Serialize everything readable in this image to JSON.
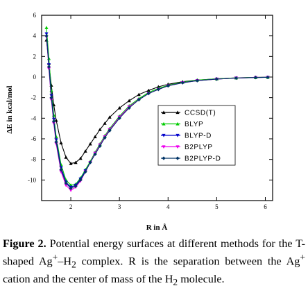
{
  "chart_data": {
    "type": "line",
    "xlabel": "R in Å",
    "ylabel": "ΔE in kcal/mol",
    "xlim": [
      1.4,
      6.15
    ],
    "ylim": [
      -12,
      6
    ],
    "x_ticks": [
      2,
      3,
      4,
      5,
      6
    ],
    "y_ticks": [
      6,
      4,
      2,
      0,
      -2,
      -4,
      -6,
      -8,
      -10
    ],
    "grid": false,
    "legend_position": "center-right",
    "series": [
      {
        "name": "CCSD(T)",
        "color": "#000000",
        "marker": "triangle",
        "x": [
          1.5,
          1.55,
          1.6,
          1.65,
          1.7,
          1.8,
          1.9,
          2.0,
          2.1,
          2.2,
          2.3,
          2.4,
          2.5,
          2.6,
          2.7,
          2.8,
          3.0,
          3.2,
          3.4,
          3.6,
          3.8,
          4.0,
          4.3,
          4.6,
          5.0,
          5.4,
          5.8,
          6.05
        ],
        "y": [
          3.6,
          1.3,
          -0.8,
          -2.7,
          -4.2,
          -6.4,
          -7.8,
          -8.4,
          -8.3,
          -7.9,
          -7.2,
          -6.5,
          -5.8,
          -5.1,
          -4.5,
          -3.9,
          -3.0,
          -2.3,
          -1.7,
          -1.3,
          -0.95,
          -0.7,
          -0.45,
          -0.3,
          -0.17,
          -0.08,
          -0.03,
          -0.02
        ]
      },
      {
        "name": "BLYP",
        "color": "#00cc00",
        "marker": "triangle",
        "x": [
          1.5,
          1.55,
          1.6,
          1.65,
          1.7,
          1.8,
          1.9,
          2.0,
          2.1,
          2.2,
          2.3,
          2.4,
          2.5,
          2.6,
          2.7,
          2.8,
          3.0,
          3.2,
          3.4,
          3.6,
          3.8,
          4.0,
          4.3,
          4.6,
          5.0,
          5.4,
          5.8,
          6.05
        ],
        "y": [
          4.8,
          1.8,
          -1.3,
          -3.7,
          -5.8,
          -8.5,
          -10.0,
          -10.5,
          -10.4,
          -9.8,
          -9.0,
          -8.2,
          -7.3,
          -6.5,
          -5.7,
          -5.0,
          -3.8,
          -2.8,
          -2.1,
          -1.5,
          -1.1,
          -0.8,
          -0.5,
          -0.3,
          -0.17,
          -0.08,
          -0.04,
          -0.02
        ]
      },
      {
        "name": "BLYP-D",
        "color": "#0000cc",
        "marker": "triangle-down",
        "x": [
          1.5,
          1.55,
          1.6,
          1.65,
          1.7,
          1.8,
          1.9,
          2.0,
          2.1,
          2.2,
          2.3,
          2.4,
          2.5,
          2.6,
          2.7,
          2.8,
          3.0,
          3.2,
          3.4,
          3.6,
          3.8,
          4.0,
          4.3,
          4.6,
          5.0,
          5.4,
          5.8,
          6.05
        ],
        "y": [
          4.2,
          1.2,
          -1.8,
          -4.1,
          -6.1,
          -8.8,
          -10.2,
          -10.7,
          -10.5,
          -9.9,
          -9.1,
          -8.3,
          -7.4,
          -6.6,
          -5.8,
          -5.1,
          -3.9,
          -2.9,
          -2.2,
          -1.6,
          -1.2,
          -0.85,
          -0.55,
          -0.35,
          -0.2,
          -0.1,
          -0.05,
          -0.03
        ]
      },
      {
        "name": "B2PLYP",
        "color": "#ee00ee",
        "marker": "triangle-down",
        "x": [
          1.5,
          1.55,
          1.6,
          1.65,
          1.7,
          1.8,
          1.9,
          2.0,
          2.1,
          2.2,
          2.3,
          2.4,
          2.5,
          2.6,
          2.7,
          2.8,
          3.0,
          3.2,
          3.4,
          3.6,
          3.8,
          4.0,
          4.3,
          4.6,
          5.0,
          5.4,
          5.8,
          6.05
        ],
        "y": [
          3.9,
          0.8,
          -2.2,
          -4.5,
          -6.5,
          -9.2,
          -10.5,
          -11.0,
          -10.7,
          -10.1,
          -9.2,
          -8.3,
          -7.4,
          -6.6,
          -5.8,
          -5.1,
          -3.9,
          -2.9,
          -2.2,
          -1.6,
          -1.2,
          -0.85,
          -0.55,
          -0.35,
          -0.2,
          -0.1,
          -0.05,
          -0.03
        ]
      },
      {
        "name": "B2PLYP-D",
        "color": "#003366",
        "marker": "diamond",
        "x": [
          1.5,
          1.55,
          1.6,
          1.65,
          1.7,
          1.8,
          1.9,
          2.0,
          2.1,
          2.2,
          2.3,
          2.4,
          2.5,
          2.6,
          2.7,
          2.8,
          3.0,
          3.2,
          3.4,
          3.6,
          3.8,
          4.0,
          4.3,
          4.6,
          5.0,
          5.4,
          5.8,
          6.05
        ],
        "y": [
          4.0,
          1.0,
          -2.0,
          -4.3,
          -6.3,
          -9.0,
          -10.3,
          -10.8,
          -10.6,
          -10.0,
          -9.2,
          -8.3,
          -7.5,
          -6.7,
          -5.9,
          -5.2,
          -4.0,
          -3.0,
          -2.2,
          -1.6,
          -1.2,
          -0.85,
          -0.55,
          -0.35,
          -0.2,
          -0.1,
          -0.05,
          -0.03
        ]
      }
    ]
  },
  "caption": {
    "label": "Figure 2.",
    "text_a": " Potential energy surfaces at different methods for the T-shaped Ag",
    "sup_plus_1": "+",
    "text_b": "–H",
    "sub_2_a": "2",
    "text_c": " complex. R is the separation between the Ag",
    "sup_plus_2": "+",
    "text_d": " cation and the center of mass of the H",
    "sub_2_b": "2",
    "text_e": " molecule."
  }
}
